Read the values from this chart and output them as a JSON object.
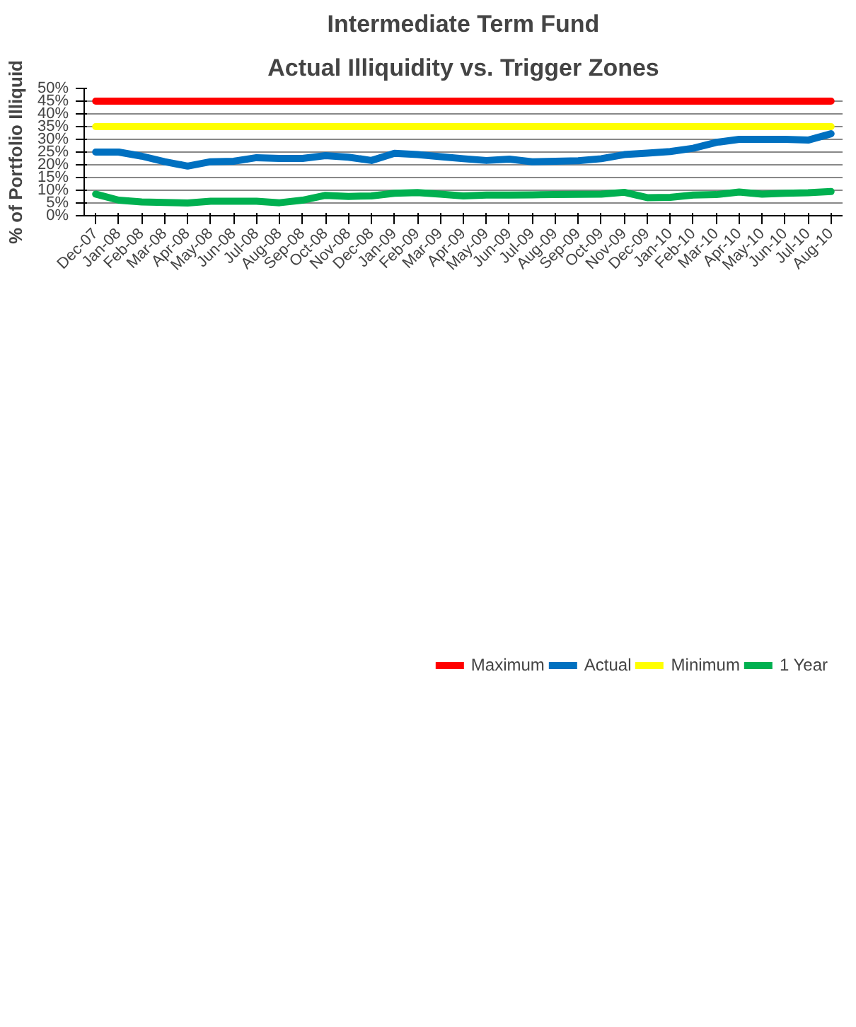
{
  "chart_data": {
    "type": "line",
    "title": "Intermediate Term Fund",
    "subtitle": "Actual Illiquidity vs. Trigger Zones",
    "ylabel": "% of Portfolio Illiquid",
    "categories": [
      "Dec-07",
      "Jan-08",
      "Feb-08",
      "Mar-08",
      "Apr-08",
      "May-08",
      "Jun-08",
      "Jul-08",
      "Aug-08",
      "Sep-08",
      "Oct-08",
      "Nov-08",
      "Dec-08",
      "Jan-09",
      "Feb-09",
      "Mar-09",
      "Apr-09",
      "May-09",
      "Jun-09",
      "Jul-09",
      "Aug-09",
      "Sep-09",
      "Oct-09",
      "Nov-09",
      "Dec-09",
      "Jan-10",
      "Feb-10",
      "Mar-10",
      "Apr-10",
      "May-10",
      "Jun-10",
      "Jul-10",
      "Aug-10"
    ],
    "series": [
      {
        "name": "Maximum",
        "color": "#ff0000",
        "values": [
          45,
          45,
          45,
          45,
          45,
          45,
          45,
          45,
          45,
          45,
          45,
          45,
          45,
          45,
          45,
          45,
          45,
          45,
          45,
          45,
          45,
          45,
          45,
          45,
          45,
          45,
          45,
          45,
          45,
          45,
          45,
          45,
          45
        ]
      },
      {
        "name": "Actual",
        "color": "#0070c0",
        "values": [
          25,
          25,
          23.4,
          21.2,
          19.5,
          21.2,
          21.4,
          22.8,
          22.5,
          22.5,
          23.6,
          23,
          21.7,
          24.5,
          24,
          23.2,
          22.4,
          21.7,
          22.2,
          21.2,
          21.4,
          21.6,
          22.4,
          24,
          24.6,
          25.2,
          26.5,
          28.8,
          30,
          30,
          30,
          29.7,
          32.2
        ]
      },
      {
        "name": "Minimum",
        "color": "#ffff00",
        "values": [
          35,
          35,
          35,
          35,
          35,
          35,
          35,
          35,
          35,
          35,
          35,
          35,
          35,
          35,
          35,
          35,
          35,
          35,
          35,
          35,
          35,
          35,
          35,
          35,
          35,
          35,
          35,
          35,
          35,
          35,
          35,
          35,
          35
        ]
      },
      {
        "name": "1 Year",
        "color": "#00b050",
        "values": [
          8.5,
          6.1,
          5.4,
          5.2,
          5,
          5.7,
          5.7,
          5.7,
          5.1,
          6.1,
          8,
          7.6,
          7.8,
          8.8,
          9.1,
          8.5,
          7.8,
          8.1,
          8.1,
          8.2,
          8.3,
          8.4,
          8.5,
          9.2,
          7.1,
          7.2,
          8.1,
          8.3,
          9.3,
          8.5,
          8.8,
          9,
          9.5
        ]
      }
    ],
    "ylim": [
      0,
      50
    ],
    "yticks": [
      {
        "value": 0,
        "label": "0%"
      },
      {
        "value": 5,
        "label": "5%"
      },
      {
        "value": 10,
        "label": "10%"
      },
      {
        "value": 15,
        "label": "15%"
      },
      {
        "value": 20,
        "label": "20%"
      },
      {
        "value": 25,
        "label": "25%"
      },
      {
        "value": 30,
        "label": "30%"
      },
      {
        "value": 35,
        "label": "35%"
      },
      {
        "value": 40,
        "label": "40%"
      },
      {
        "value": 45,
        "label": "45%"
      },
      {
        "value": 50,
        "label": "50%"
      }
    ],
    "grid": "y",
    "legend": "bottom",
    "marker": "none",
    "line_style": "solid"
  }
}
